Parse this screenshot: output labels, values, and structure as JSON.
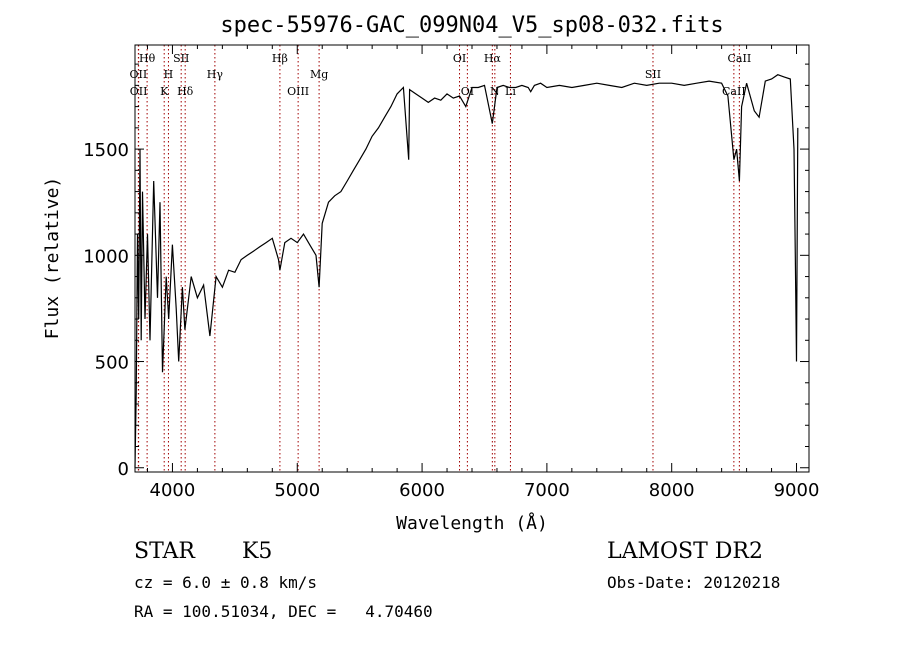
{
  "chart_data": {
    "type": "line",
    "title": "spec-55976-GAC_099N04_V5_sp08-032.fits",
    "xlabel": "Wavelength (Å)",
    "ylabel": "Flux (relative)",
    "xlim": [
      3700,
      9100
    ],
    "ylim": [
      -20,
      1990
    ],
    "xticks": [
      4000,
      5000,
      6000,
      7000,
      8000,
      9000
    ],
    "xtick_labels": [
      "4000",
      "5000",
      "6000",
      "7000",
      "8000",
      "9000"
    ],
    "yticks": [
      0,
      500,
      1000,
      1500
    ],
    "ytick_labels": [
      "0",
      "500",
      "1000",
      "1500"
    ],
    "grid": false,
    "legend": "none",
    "series": [
      {
        "x": [
          3700,
          3710,
          3720,
          3730,
          3740,
          3750,
          3760,
          3780,
          3800,
          3820,
          3850,
          3880,
          3900,
          3920,
          3950,
          3970,
          4000,
          4030,
          4050,
          4080,
          4100,
          4150,
          4200,
          4250,
          4300,
          4350,
          4400,
          4450,
          4500,
          4550,
          4600,
          4650,
          4700,
          4750,
          4800,
          4850,
          4861,
          4900,
          4950,
          5000,
          5050,
          5100,
          5150,
          5175,
          5200,
          5250,
          5300,
          5350,
          5400,
          5450,
          5500,
          5550,
          5600,
          5650,
          5700,
          5750,
          5800,
          5850,
          5893,
          5900,
          5950,
          6000,
          6050,
          6100,
          6150,
          6200,
          6250,
          6300,
          6350,
          6400,
          6450,
          6500,
          6563,
          6600,
          6650,
          6700,
          6750,
          6800,
          6850,
          6870,
          6900,
          6950,
          7000,
          7100,
          7200,
          7300,
          7400,
          7500,
          7600,
          7700,
          7800,
          7900,
          8000,
          8100,
          8200,
          8300,
          8400,
          8450,
          8498,
          8520,
          8542,
          8560,
          8600,
          8662,
          8700,
          8750,
          8800,
          8850,
          8900,
          8950,
          8980,
          8990,
          9000,
          9010
        ],
        "y": [
          0,
          350,
          1100,
          700,
          1500,
          600,
          1300,
          700,
          1100,
          600,
          1350,
          800,
          1250,
          450,
          900,
          700,
          1050,
          750,
          500,
          850,
          650,
          900,
          800,
          860,
          620,
          900,
          850,
          930,
          920,
          980,
          1000,
          1020,
          1040,
          1060,
          1080,
          980,
          930,
          1060,
          1080,
          1060,
          1100,
          1050,
          1000,
          850,
          1150,
          1250,
          1280,
          1300,
          1350,
          1400,
          1450,
          1500,
          1560,
          1600,
          1650,
          1700,
          1760,
          1790,
          1450,
          1780,
          1760,
          1740,
          1720,
          1740,
          1730,
          1760,
          1740,
          1750,
          1700,
          1790,
          1790,
          1800,
          1620,
          1790,
          1800,
          1790,
          1790,
          1800,
          1790,
          1770,
          1800,
          1810,
          1790,
          1800,
          1790,
          1800,
          1810,
          1800,
          1790,
          1810,
          1800,
          1810,
          1810,
          1800,
          1810,
          1820,
          1810,
          1750,
          1450,
          1500,
          1350,
          1700,
          1810,
          1680,
          1650,
          1820,
          1830,
          1850,
          1840,
          1830,
          1500,
          1000,
          500,
          1600
        ]
      }
    ],
    "lines": [
      {
        "label": "Hθ",
        "x": 3797,
        "pos": "top1"
      },
      {
        "label": "OII",
        "x": 3727,
        "pos": "top2"
      },
      {
        "label": "OII",
        "x": 3729,
        "pos": "top3"
      },
      {
        "label": "H",
        "x": 3968,
        "pos": "top2"
      },
      {
        "label": "K",
        "x": 3934,
        "pos": "top3"
      },
      {
        "label": "SII",
        "x": 4070,
        "pos": "top1"
      },
      {
        "label": "Hδ",
        "x": 4102,
        "pos": "top3"
      },
      {
        "label": "Hγ",
        "x": 4340,
        "pos": "top2"
      },
      {
        "label": "Hβ",
        "x": 4861,
        "pos": "top1"
      },
      {
        "label": "OIII",
        "x": 5007,
        "pos": "top3"
      },
      {
        "label": "Mg",
        "x": 5175,
        "pos": "top2"
      },
      {
        "label": "OI",
        "x": 6300,
        "pos": "top1"
      },
      {
        "label": "OI",
        "x": 6363,
        "pos": "top3"
      },
      {
        "label": "Hα",
        "x": 6563,
        "pos": "top1"
      },
      {
        "label": "N",
        "x": 6583,
        "pos": "top3"
      },
      {
        "label": "Li",
        "x": 6708,
        "pos": "top3"
      },
      {
        "label": "SII",
        "x": 7850,
        "pos": "top2"
      },
      {
        "label": "CaII",
        "x": 8542,
        "pos": "top1"
      },
      {
        "label": "CaII",
        "x": 8498,
        "pos": "top3"
      }
    ]
  },
  "info": {
    "object_class": "STAR",
    "subclass": "K5",
    "survey": "LAMOST DR2",
    "cz": "cz = 6.0 ± 0.8 km/s",
    "obs_date": "Obs-Date: 20120218",
    "coords": "RA = 100.51034, DEC =   4.70460"
  }
}
